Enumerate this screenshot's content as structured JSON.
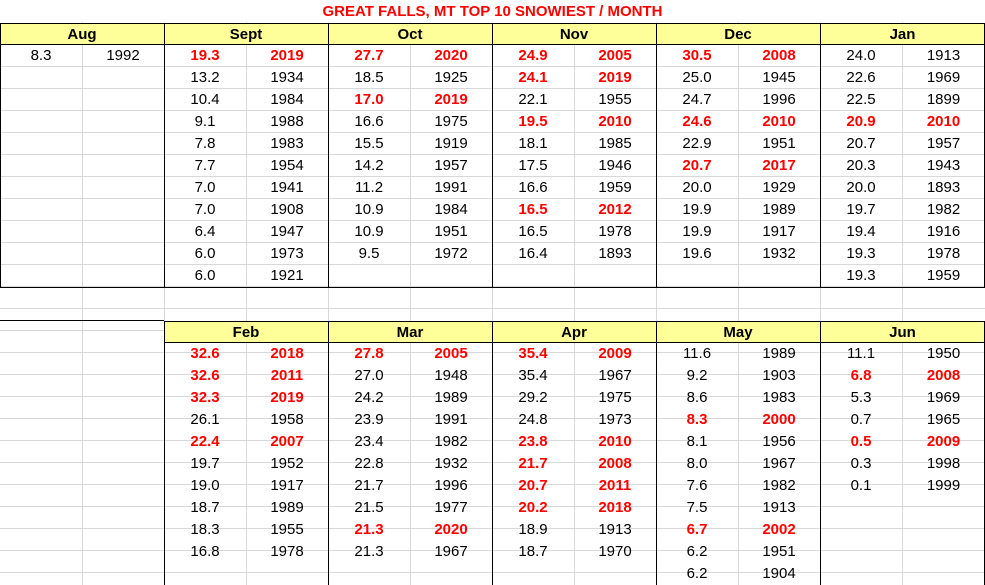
{
  "title": "GREAT FALLS, MT TOP 10 SNOWIEST / MONTH",
  "highlight_color": "#ff0000",
  "header_color": "#ffff99",
  "top_block": [
    {
      "month": "Aug",
      "rows": [
        {
          "v": "8.3",
          "y": "1992",
          "h": false
        }
      ]
    },
    {
      "month": "Sept",
      "rows": [
        {
          "v": "19.3",
          "y": "2019",
          "h": true
        },
        {
          "v": "13.2",
          "y": "1934",
          "h": false
        },
        {
          "v": "10.4",
          "y": "1984",
          "h": false
        },
        {
          "v": "9.1",
          "y": "1988",
          "h": false
        },
        {
          "v": "7.8",
          "y": "1983",
          "h": false
        },
        {
          "v": "7.7",
          "y": "1954",
          "h": false
        },
        {
          "v": "7.0",
          "y": "1941",
          "h": false
        },
        {
          "v": "7.0",
          "y": "1908",
          "h": false
        },
        {
          "v": "6.4",
          "y": "1947",
          "h": false
        },
        {
          "v": "6.0",
          "y": "1973",
          "h": false
        },
        {
          "v": "6.0",
          "y": "1921",
          "h": false
        }
      ]
    },
    {
      "month": "Oct",
      "rows": [
        {
          "v": "27.7",
          "y": "2020",
          "h": true
        },
        {
          "v": "18.5",
          "y": "1925",
          "h": false
        },
        {
          "v": "17.0",
          "y": "2019",
          "h": true
        },
        {
          "v": "16.6",
          "y": "1975",
          "h": false
        },
        {
          "v": "15.5",
          "y": "1919",
          "h": false
        },
        {
          "v": "14.2",
          "y": "1957",
          "h": false
        },
        {
          "v": "11.2",
          "y": "1991",
          "h": false
        },
        {
          "v": "10.9",
          "y": "1984",
          "h": false
        },
        {
          "v": "10.9",
          "y": "1951",
          "h": false
        },
        {
          "v": "9.5",
          "y": "1972",
          "h": false
        }
      ]
    },
    {
      "month": "Nov",
      "rows": [
        {
          "v": "24.9",
          "y": "2005",
          "h": true
        },
        {
          "v": "24.1",
          "y": "2019",
          "h": true
        },
        {
          "v": "22.1",
          "y": "1955",
          "h": false
        },
        {
          "v": "19.5",
          "y": "2010",
          "h": true
        },
        {
          "v": "18.1",
          "y": "1985",
          "h": false
        },
        {
          "v": "17.5",
          "y": "1946",
          "h": false
        },
        {
          "v": "16.6",
          "y": "1959",
          "h": false
        },
        {
          "v": "16.5",
          "y": "2012",
          "h": true
        },
        {
          "v": "16.5",
          "y": "1978",
          "h": false
        },
        {
          "v": "16.4",
          "y": "1893",
          "h": false
        }
      ]
    },
    {
      "month": "Dec",
      "rows": [
        {
          "v": "30.5",
          "y": "2008",
          "h": true
        },
        {
          "v": "25.0",
          "y": "1945",
          "h": false
        },
        {
          "v": "24.7",
          "y": "1996",
          "h": false
        },
        {
          "v": "24.6",
          "y": "2010",
          "h": true
        },
        {
          "v": "22.9",
          "y": "1951",
          "h": false
        },
        {
          "v": "20.7",
          "y": "2017",
          "h": true
        },
        {
          "v": "20.0",
          "y": "1929",
          "h": false
        },
        {
          "v": "19.9",
          "y": "1989",
          "h": false
        },
        {
          "v": "19.9",
          "y": "1917",
          "h": false
        },
        {
          "v": "19.6",
          "y": "1932",
          "h": false
        }
      ]
    },
    {
      "month": "Jan",
      "rows": [
        {
          "v": "24.0",
          "y": "1913",
          "h": false
        },
        {
          "v": "22.6",
          "y": "1969",
          "h": false
        },
        {
          "v": "22.5",
          "y": "1899",
          "h": false
        },
        {
          "v": "20.9",
          "y": "2010",
          "h": true
        },
        {
          "v": "20.7",
          "y": "1957",
          "h": false
        },
        {
          "v": "20.3",
          "y": "1943",
          "h": false
        },
        {
          "v": "20.0",
          "y": "1893",
          "h": false
        },
        {
          "v": "19.7",
          "y": "1982",
          "h": false
        },
        {
          "v": "19.4",
          "y": "1916",
          "h": false
        },
        {
          "v": "19.3",
          "y": "1978",
          "h": false
        },
        {
          "v": "19.3",
          "y": "1959",
          "h": false
        }
      ]
    }
  ],
  "bottom_block": [
    {
      "month": "Feb",
      "rows": [
        {
          "v": "32.6",
          "y": "2018",
          "h": true
        },
        {
          "v": "32.6",
          "y": "2011",
          "h": true
        },
        {
          "v": "32.3",
          "y": "2019",
          "h": true
        },
        {
          "v": "26.1",
          "y": "1958",
          "h": false
        },
        {
          "v": "22.4",
          "y": "2007",
          "h": true
        },
        {
          "v": "19.7",
          "y": "1952",
          "h": false
        },
        {
          "v": "19.0",
          "y": "1917",
          "h": false
        },
        {
          "v": "18.7",
          "y": "1989",
          "h": false
        },
        {
          "v": "18.3",
          "y": "1955",
          "h": false
        },
        {
          "v": "16.8",
          "y": "1978",
          "h": false
        }
      ]
    },
    {
      "month": "Mar",
      "rows": [
        {
          "v": "27.8",
          "y": "2005",
          "h": true
        },
        {
          "v": "27.0",
          "y": "1948",
          "h": false
        },
        {
          "v": "24.2",
          "y": "1989",
          "h": false
        },
        {
          "v": "23.9",
          "y": "1991",
          "h": false
        },
        {
          "v": "23.4",
          "y": "1982",
          "h": false
        },
        {
          "v": "22.8",
          "y": "1932",
          "h": false
        },
        {
          "v": "21.7",
          "y": "1996",
          "h": false
        },
        {
          "v": "21.5",
          "y": "1977",
          "h": false
        },
        {
          "v": "21.3",
          "y": "2020",
          "h": true
        },
        {
          "v": "21.3",
          "y": "1967",
          "h": false
        }
      ]
    },
    {
      "month": "Apr",
      "rows": [
        {
          "v": "35.4",
          "y": "2009",
          "h": true
        },
        {
          "v": "35.4",
          "y": "1967",
          "h": false
        },
        {
          "v": "29.2",
          "y": "1975",
          "h": false
        },
        {
          "v": "24.8",
          "y": "1973",
          "h": false
        },
        {
          "v": "23.8",
          "y": "2010",
          "h": true
        },
        {
          "v": "21.7",
          "y": "2008",
          "h": true
        },
        {
          "v": "20.7",
          "y": "2011",
          "h": true
        },
        {
          "v": "20.2",
          "y": "2018",
          "h": true
        },
        {
          "v": "18.9",
          "y": "1913",
          "h": false
        },
        {
          "v": "18.7",
          "y": "1970",
          "h": false
        }
      ]
    },
    {
      "month": "May",
      "rows": [
        {
          "v": "11.6",
          "y": "1989",
          "h": false
        },
        {
          "v": "9.2",
          "y": "1903",
          "h": false
        },
        {
          "v": "8.6",
          "y": "1983",
          "h": false
        },
        {
          "v": "8.3",
          "y": "2000",
          "h": true
        },
        {
          "v": "8.1",
          "y": "1956",
          "h": false
        },
        {
          "v": "8.0",
          "y": "1967",
          "h": false
        },
        {
          "v": "7.6",
          "y": "1982",
          "h": false
        },
        {
          "v": "7.5",
          "y": "1913",
          "h": false
        },
        {
          "v": "6.7",
          "y": "2002",
          "h": true
        },
        {
          "v": "6.2",
          "y": "1951",
          "h": false
        },
        {
          "v": "6.2",
          "y": "1904",
          "h": false
        }
      ]
    },
    {
      "month": "Jun",
      "rows": [
        {
          "v": "11.1",
          "y": "1950",
          "h": false
        },
        {
          "v": "6.8",
          "y": "2008",
          "h": true
        },
        {
          "v": "5.3",
          "y": "1969",
          "h": false
        },
        {
          "v": "0.7",
          "y": "1965",
          "h": false
        },
        {
          "v": "0.5",
          "y": "2009",
          "h": true
        },
        {
          "v": "0.3",
          "y": "1998",
          "h": false
        },
        {
          "v": "0.1",
          "y": "1999",
          "h": false
        }
      ]
    }
  ]
}
